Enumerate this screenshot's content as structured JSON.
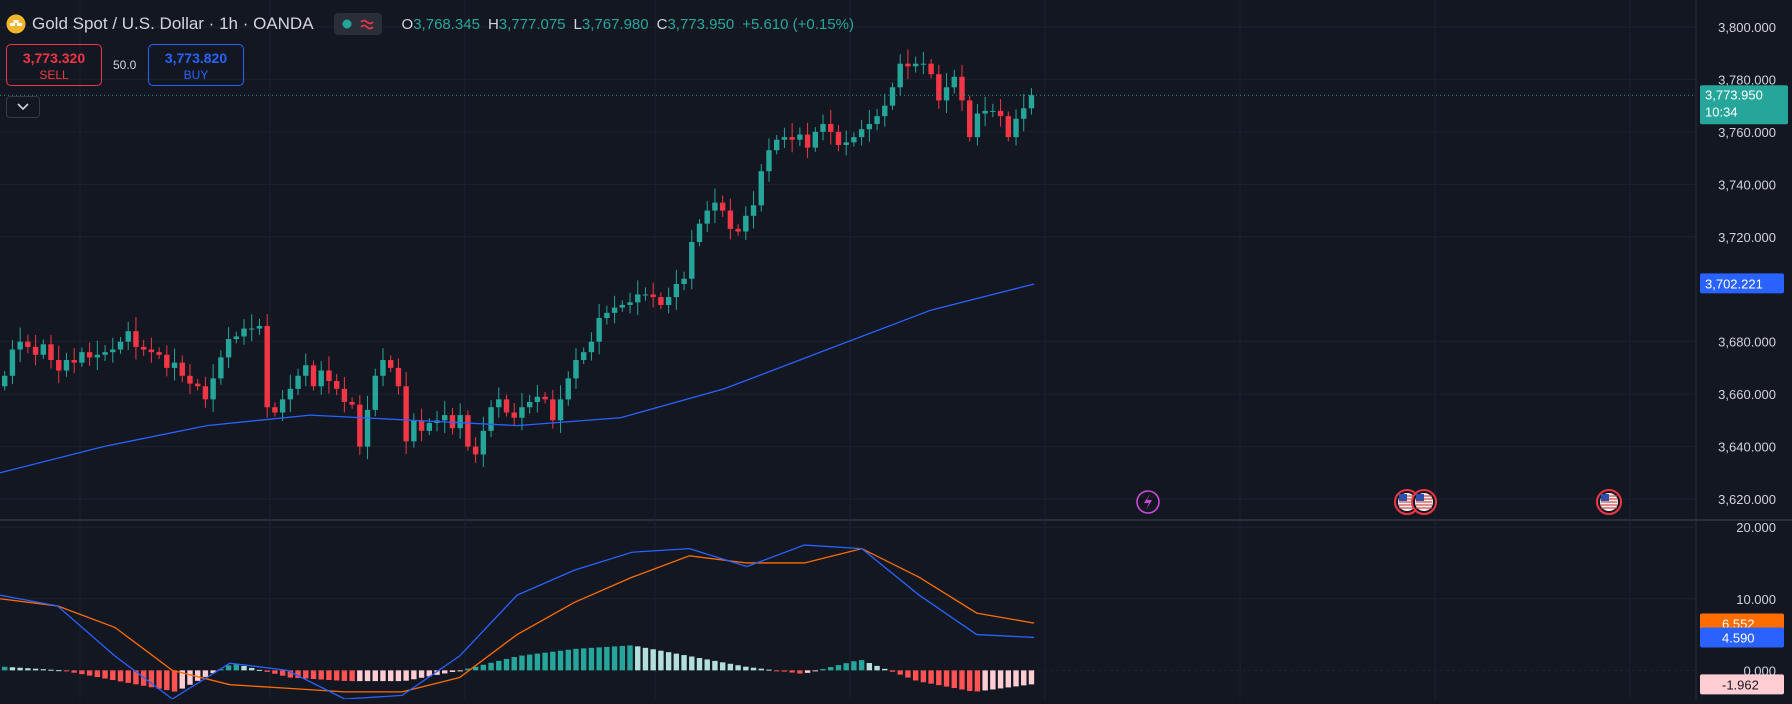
{
  "header": {
    "title": "Gold Spot / U.S. Dollar · 1h · OANDA",
    "ohlc": [
      {
        "key": "O",
        "value": "3,768.345"
      },
      {
        "key": "H",
        "value": "3,777.075"
      },
      {
        "key": "L",
        "value": "3,767.980"
      },
      {
        "key": "C",
        "value": "3,773.950"
      }
    ],
    "change": "+5.610 (+0.15%)"
  },
  "trade": {
    "sell_price": "3,773.320",
    "sell_label": "SELL",
    "buy_price": "3,773.820",
    "buy_label": "BUY",
    "spread": "50.0"
  },
  "chart_data": [
    {
      "type": "candlestick",
      "title": "Gold Spot / U.S. Dollar · 1h · OANDA",
      "ylim": [
        3612,
        3808
      ],
      "y_ticks": [
        "3,800.000",
        "3,780.000",
        "3,760.000",
        "3,740.000",
        "3,720.000",
        "3,680.000",
        "3,660.000",
        "3,640.000",
        "3,620.000"
      ],
      "grid": true,
      "candles_close": [
        3667,
        3677,
        3680,
        3678,
        3675,
        3679,
        3673,
        3669,
        3673,
        3672,
        3676,
        3674,
        3675,
        3676,
        3677,
        3680,
        3684,
        3678,
        3677,
        3676,
        3675,
        3670,
        3672,
        3667,
        3664,
        3663,
        3658,
        3666,
        3674,
        3681,
        3682,
        3685,
        3685,
        3686,
        3655,
        3653,
        3658,
        3662,
        3667,
        3671,
        3663,
        3669,
        3665,
        3662,
        3657,
        3656,
        3640,
        3654,
        3667,
        3673,
        3670,
        3663,
        3642,
        3650,
        3646,
        3649,
        3650,
        3652,
        3647,
        3652,
        3640,
        3637,
        3646,
        3655,
        3658,
        3653,
        3651,
        3655,
        3657,
        3659,
        3658,
        3650,
        3658,
        3666,
        3673,
        3676,
        3680,
        3689,
        3691,
        3693,
        3694,
        3695,
        3698,
        3698,
        3697,
        3694,
        3697,
        3702,
        3704,
        3718,
        3725,
        3730,
        3733,
        3730,
        3723,
        3722,
        3728,
        3732,
        3745,
        3753,
        3757,
        3758,
        3757,
        3759,
        3754,
        3760,
        3763,
        3760,
        3755,
        3756,
        3758,
        3761,
        3763,
        3766,
        3770,
        3777,
        3786,
        3785,
        3786,
        3786,
        3782,
        3772,
        3777,
        3781,
        3772,
        3758,
        3767,
        3768,
        3768,
        3766,
        3758,
        3765,
        3769,
        3774
      ],
      "series": [
        {
          "name": "",
          "values_sampled": [
            3630,
            3640,
            3648,
            3652,
            3650,
            3648,
            3651,
            3662,
            3677,
            3692,
            3702
          ]
        }
      ],
      "current_price": "3,773.950",
      "countdown": "10:34",
      "ma_value": "3,702.221"
    },
    {
      "type": "line+histogram",
      "ylim": [
        -4,
        21
      ],
      "y_ticks": [
        "20.000",
        "10.000",
        "0.000"
      ],
      "macd_last": "4.590",
      "signal_last": "6.552",
      "histogram_last": "-1.962",
      "macd_sampled": [
        10.5,
        9,
        2,
        -4,
        1,
        0,
        -4,
        -3.5,
        2,
        10.5,
        14,
        16.5,
        17,
        14.5,
        17.5,
        17,
        10.5,
        5,
        4.6
      ],
      "signal_sampled": [
        10,
        9,
        6,
        0,
        -2,
        -2.5,
        -3,
        -3,
        -1,
        5,
        9.5,
        13,
        16,
        15,
        15,
        17,
        13,
        8,
        6.6
      ],
      "histogram_sampled": [
        0.5,
        0,
        -1.5,
        -3,
        1,
        -1,
        -1.5,
        -1.5,
        0,
        2,
        3,
        3.5,
        2,
        0.5,
        -0.5,
        1.5,
        -1.5,
        -3,
        -1.96
      ]
    }
  ],
  "colors": {
    "bg": "#131722",
    "up": "#26a69a",
    "down": "#f23645",
    "ma": "#2962ff",
    "signal": "#ff6d00",
    "grid": "#1e222d"
  },
  "icons": [
    "gold-coin-icon",
    "market-open-dot-icon",
    "wave-icon",
    "chevron-down-icon",
    "lightning-icon",
    "us-flag-event-icon"
  ]
}
